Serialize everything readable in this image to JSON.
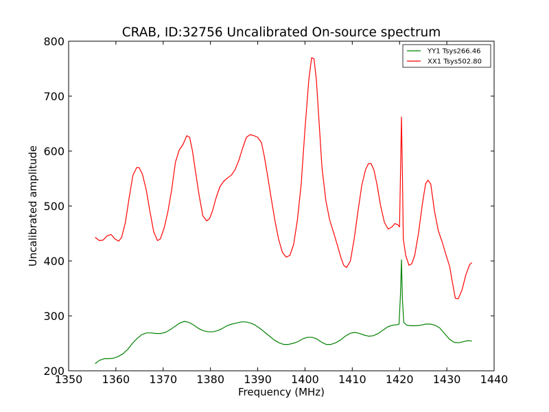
{
  "chart_data": {
    "type": "line",
    "title": "CRAB, ID:32756 Uncalibrated On-source spectrum",
    "xlabel": "Frequency (MHz)",
    "ylabel": "Uncalibrated amplitude",
    "xlim": [
      1350,
      1440
    ],
    "ylim": [
      200,
      800
    ],
    "xticks": [
      1350,
      1360,
      1370,
      1380,
      1390,
      1400,
      1410,
      1420,
      1430,
      1440
    ],
    "yticks": [
      200,
      300,
      400,
      500,
      600,
      700,
      800
    ],
    "grid": false,
    "legend_position": "top-right",
    "series": [
      {
        "name": "YY1 Tsys266.46",
        "color": "#008000",
        "x": [
          1355.6,
          1356.5,
          1357.5,
          1358.5,
          1359.5,
          1360.5,
          1361.5,
          1362.5,
          1363.5,
          1364.5,
          1365.5,
          1366.5,
          1367.5,
          1368.5,
          1369.5,
          1370.5,
          1371.5,
          1372.5,
          1373.5,
          1374.5,
          1375.5,
          1376.5,
          1377.5,
          1378.5,
          1379.5,
          1380.5,
          1381.5,
          1382.5,
          1383.5,
          1384.5,
          1385.5,
          1386.5,
          1387.5,
          1388.5,
          1389.5,
          1390.5,
          1391.5,
          1392.5,
          1393.5,
          1394.5,
          1395.5,
          1396.5,
          1397.5,
          1398.5,
          1399.5,
          1400.5,
          1401.5,
          1402.5,
          1403.5,
          1404.5,
          1405.5,
          1406.5,
          1407.5,
          1408.5,
          1409.5,
          1410.5,
          1411.5,
          1412.5,
          1413.5,
          1414.5,
          1415.5,
          1416.5,
          1417.5,
          1418.5,
          1419.5,
          1419.9,
          1420.2,
          1420.4,
          1420.6,
          1420.9,
          1421.5,
          1422.5,
          1423.5,
          1424.5,
          1425.5,
          1426.5,
          1427.5,
          1428.5,
          1429.5,
          1430.5,
          1431.5,
          1432.5,
          1433.5,
          1434.5,
          1435.3
        ],
        "y": [
          213,
          219,
          222,
          222,
          223,
          226,
          231,
          239,
          250,
          259,
          266,
          269,
          269,
          268,
          268,
          270,
          275,
          281,
          287,
          290,
          288,
          283,
          277,
          273,
          271,
          271,
          273,
          277,
          282,
          285,
          287,
          289,
          289,
          287,
          283,
          277,
          270,
          263,
          256,
          251,
          248,
          248,
          250,
          253,
          258,
          261,
          261,
          258,
          252,
          248,
          248,
          251,
          256,
          263,
          268,
          270,
          268,
          265,
          263,
          264,
          268,
          274,
          280,
          283,
          284,
          285,
          340,
          402,
          330,
          288,
          283,
          282,
          282,
          283,
          285,
          285,
          283,
          278,
          268,
          258,
          252,
          251,
          253,
          255,
          254
        ]
      },
      {
        "name": "XX1 Tsys502.80",
        "color": "#ff0000",
        "x": [
          1355.6,
          1356.5,
          1357.3,
          1358.2,
          1359.0,
          1359.8,
          1360.6,
          1361.2,
          1362.0,
          1362.8,
          1363.6,
          1364.4,
          1364.9,
          1365.6,
          1366.4,
          1367.2,
          1368.0,
          1368.8,
          1369.4,
          1370.2,
          1371.0,
          1371.8,
          1372.6,
          1373.4,
          1374.2,
          1375.0,
          1375.6,
          1376.2,
          1376.8,
          1377.6,
          1378.4,
          1379.2,
          1379.8,
          1380.4,
          1381.2,
          1382.0,
          1382.8,
          1383.6,
          1384.4,
          1385.2,
          1386.0,
          1386.8,
          1387.6,
          1388.4,
          1389.2,
          1390.0,
          1390.8,
          1391.4,
          1392.0,
          1392.8,
          1393.6,
          1394.4,
          1395.2,
          1396.0,
          1396.8,
          1397.6,
          1398.4,
          1399.2,
          1400.0,
          1400.8,
          1401.4,
          1401.9,
          1402.4,
          1403.0,
          1403.6,
          1404.4,
          1405.2,
          1406.0,
          1406.8,
          1407.6,
          1408.2,
          1408.8,
          1409.6,
          1410.4,
          1411.2,
          1412.0,
          1412.8,
          1413.4,
          1414.0,
          1414.6,
          1415.2,
          1416.0,
          1416.8,
          1417.6,
          1418.4,
          1419.0,
          1419.6,
          1420.0,
          1420.2,
          1420.4,
          1420.6,
          1420.8,
          1421.3,
          1422.0,
          1422.6,
          1423.2,
          1424.0,
          1424.8,
          1425.5,
          1426.0,
          1426.6,
          1427.4,
          1428.2,
          1429.0,
          1429.8,
          1430.6,
          1431.2,
          1431.8,
          1432.4,
          1433.2,
          1434.0,
          1434.8,
          1435.3
        ],
        "y": [
          443,
          437,
          438,
          446,
          448,
          440,
          436,
          443,
          470,
          515,
          556,
          570,
          570,
          558,
          530,
          490,
          453,
          437,
          440,
          460,
          490,
          530,
          580,
          602,
          612,
          628,
          625,
          600,
          565,
          520,
          482,
          473,
          477,
          490,
          515,
          535,
          545,
          551,
          556,
          566,
          583,
          605,
          625,
          630,
          628,
          625,
          615,
          590,
          560,
          517,
          475,
          440,
          416,
          407,
          410,
          430,
          475,
          540,
          640,
          730,
          770,
          768,
          730,
          650,
          570,
          510,
          475,
          453,
          430,
          406,
          392,
          388,
          400,
          440,
          490,
          537,
          566,
          577,
          577,
          565,
          540,
          500,
          470,
          458,
          462,
          468,
          466,
          462,
          560,
          662,
          560,
          440,
          410,
          392,
          395,
          410,
          450,
          502,
          540,
          547,
          540,
          490,
          455,
          435,
          412,
          390,
          360,
          332,
          331,
          347,
          374,
          393,
          397
        ]
      }
    ]
  }
}
